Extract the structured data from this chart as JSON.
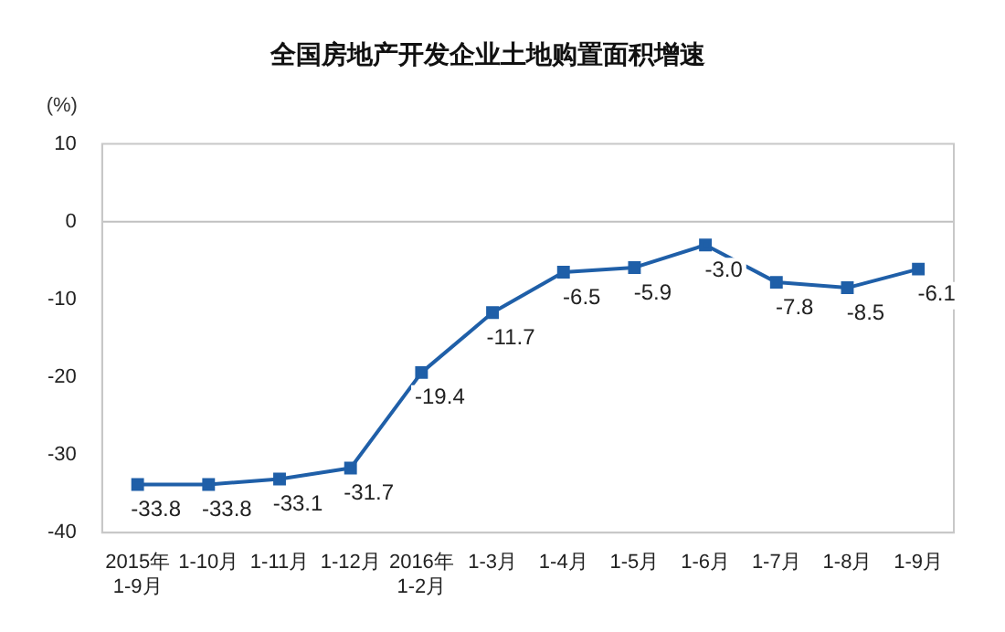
{
  "chart_data": {
    "type": "line",
    "title": "全国房地产开发企业土地购置面积增速",
    "ylabel": "(%)",
    "categories": [
      "2015年\n1-9月",
      "1-10月",
      "1-11月",
      "1-12月",
      "2016年\n1-2月",
      "1-3月",
      "1-4月",
      "1-5月",
      "1-6月",
      "1-7月",
      "1-8月",
      "1-9月"
    ],
    "series": [
      {
        "color": "#1f5fa8",
        "values": [
          -33.8,
          -33.8,
          -33.1,
          -31.7,
          -19.4,
          -11.7,
          -6.5,
          -5.9,
          -3.0,
          -7.8,
          -8.5,
          -6.1
        ],
        "value_labels": [
          "-33.8",
          "-33.8",
          "-33.1",
          "-31.7",
          "-19.4",
          "-11.7",
          "-6.5",
          "-5.9",
          "-3.0",
          "-7.8",
          "-8.5",
          "-6.1"
        ]
      }
    ],
    "ylim": [
      -40,
      10
    ],
    "yticks": [
      -40,
      -30,
      -20,
      -10,
      0,
      10
    ],
    "grid": false,
    "legend": false,
    "marker": "square",
    "line_style": "solid",
    "ref_lines": [
      {
        "axis": "y",
        "value": 0,
        "color": "#c0c0c0"
      }
    ]
  }
}
